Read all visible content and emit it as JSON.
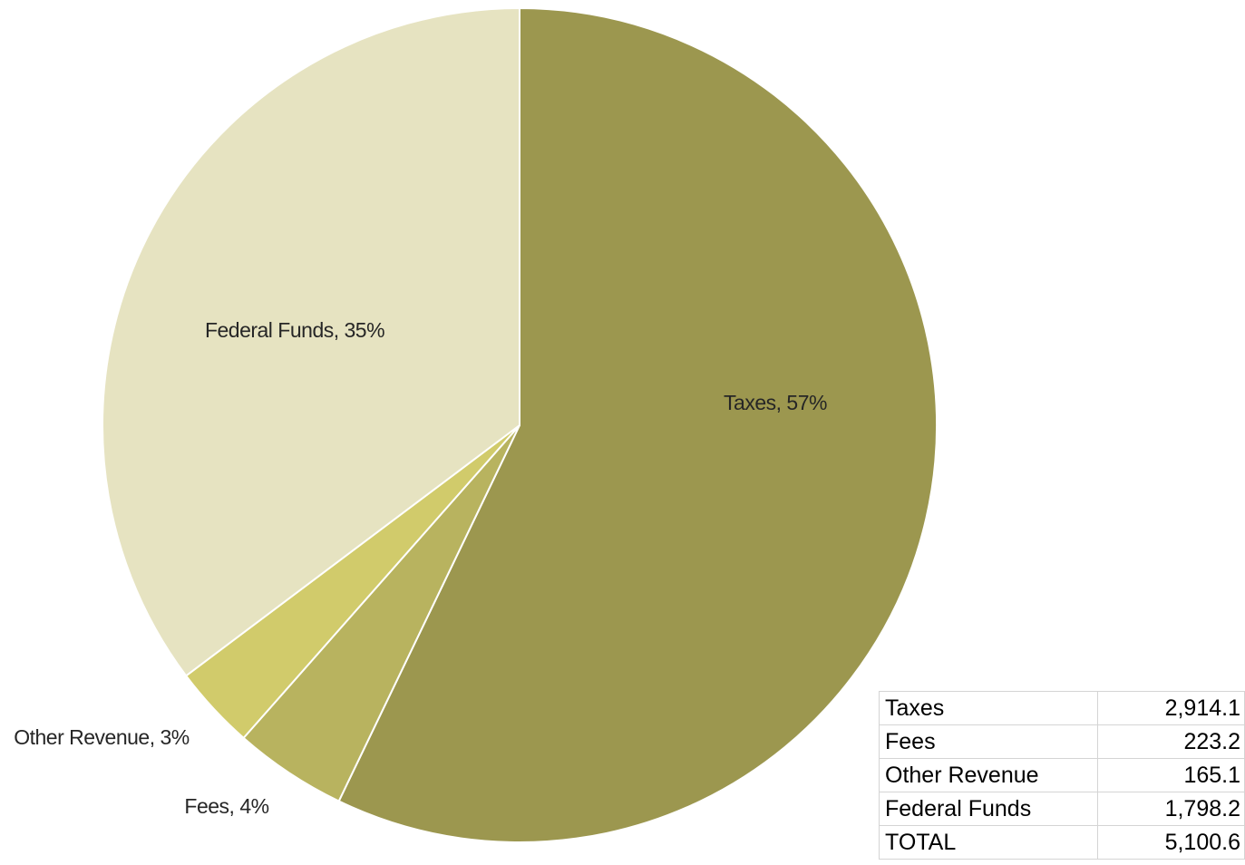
{
  "chart_data": {
    "type": "pie",
    "colors": {
      "Taxes": "#9c974f",
      "Fees": "#b8b35f",
      "Other Revenue": "#d1cb6b",
      "Federal Funds": "#e6e3c1"
    },
    "slices": [
      {
        "name": "Taxes",
        "value": 2914.1,
        "percent": 57,
        "label": "Taxes, 57%"
      },
      {
        "name": "Fees",
        "value": 223.2,
        "percent": 4,
        "label": "Fees, 4%"
      },
      {
        "name": "Other Revenue",
        "value": 165.1,
        "percent": 3,
        "label": "Other Revenue, 3%"
      },
      {
        "name": "Federal Funds",
        "value": 1798.2,
        "percent": 35,
        "label": "Federal Funds, 35%"
      }
    ],
    "start_angle": "12 o'clock",
    "direction": "clockwise",
    "legend": "none",
    "table": {
      "rows": [
        {
          "label": "Taxes",
          "value": "2,914.1"
        },
        {
          "label": "Fees",
          "value": "223.2"
        },
        {
          "label": "Other Revenue",
          "value": "165.1"
        },
        {
          "label": "Federal Funds",
          "value": "1,798.2"
        },
        {
          "label": "TOTAL",
          "value": "5,100.6"
        }
      ]
    }
  }
}
